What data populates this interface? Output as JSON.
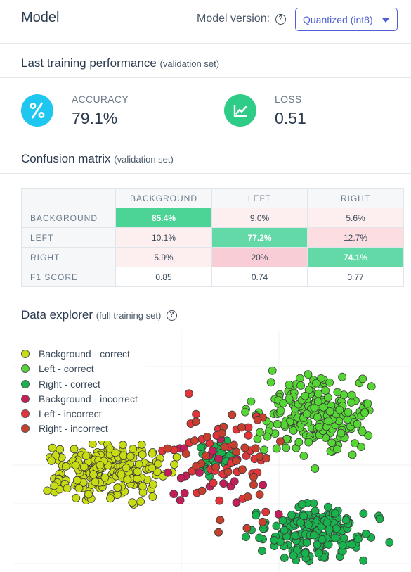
{
  "header": {
    "title": "Model",
    "model_version_label": "Model version:",
    "model_version_value": "Quantized (int8)"
  },
  "performance": {
    "title": "Last training performance",
    "subtitle": "(validation set)",
    "accuracy": {
      "label": "ACCURACY",
      "value": "79.1%",
      "icon": "percent-icon",
      "color": "#1ec6f0"
    },
    "loss": {
      "label": "LOSS",
      "value": "0.51",
      "icon": "trend-chart-icon",
      "color": "#2ecc87"
    }
  },
  "confusion": {
    "title": "Confusion matrix",
    "subtitle": "(validation set)",
    "columns": [
      "BACKGROUND",
      "LEFT",
      "RIGHT"
    ],
    "rows": [
      {
        "label": "BACKGROUND",
        "cells": [
          "85.4%",
          "9.0%",
          "5.6%"
        ]
      },
      {
        "label": "LEFT",
        "cells": [
          "10.1%",
          "77.2%",
          "12.7%"
        ]
      },
      {
        "label": "RIGHT",
        "cells": [
          "5.9%",
          "20%",
          "74.1%"
        ]
      }
    ],
    "f1": {
      "label": "F1 SCORE",
      "cells": [
        "0.85",
        "0.74",
        "0.77"
      ]
    },
    "colors": {
      "correct": "#4cd497",
      "correct_alt": "#63d9a8",
      "error_light": "#fdeef0",
      "error_mid": "#fbdde2",
      "error_strong": "#f8cdd5"
    }
  },
  "explorer": {
    "title": "Data explorer",
    "subtitle": "(full training set)",
    "legend": [
      {
        "label": "Background - correct",
        "color": "#c8dc16"
      },
      {
        "label": "Left - correct",
        "color": "#56d634"
      },
      {
        "label": "Right - correct",
        "color": "#19b34e"
      },
      {
        "label": "Background - incorrect",
        "color": "#c41e5a"
      },
      {
        "label": "Left - incorrect",
        "color": "#e3343a"
      },
      {
        "label": "Right - incorrect",
        "color": "#c7402d"
      }
    ]
  }
}
